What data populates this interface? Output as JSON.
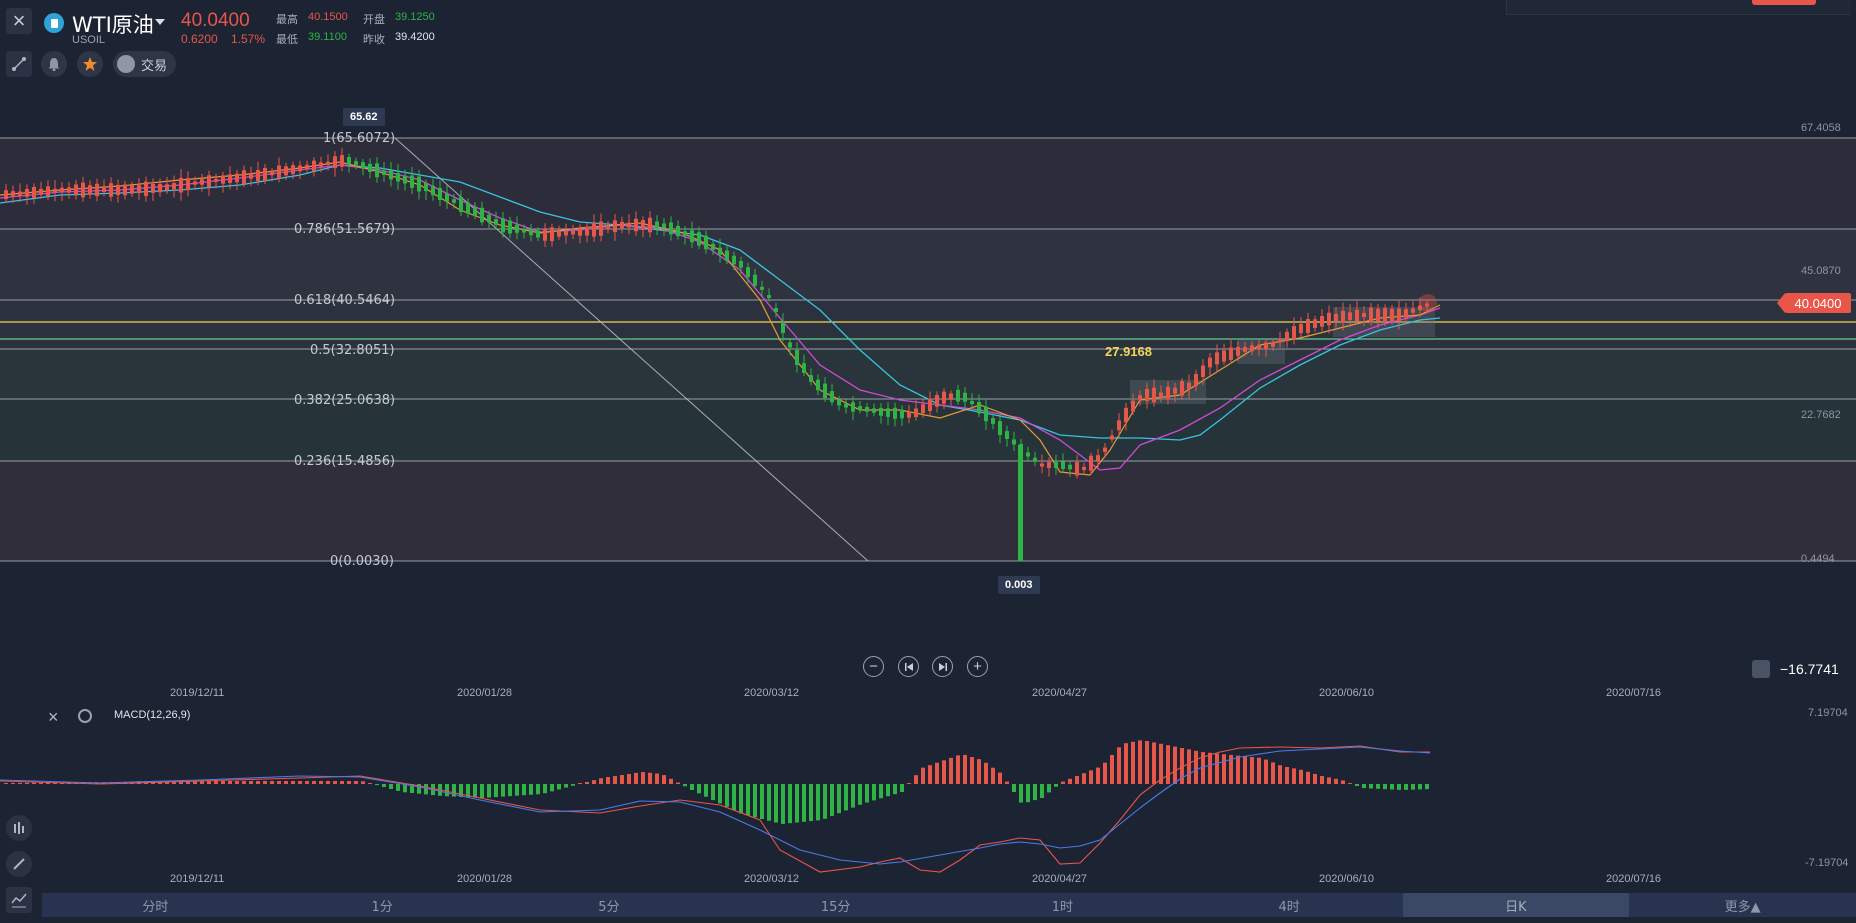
{
  "header": {
    "symbol_name": "WTI原油",
    "symbol_code": "USOIL",
    "last_price": "40.0400",
    "change": "0.6200",
    "change_pct": "1.57%",
    "high_label": "最高",
    "high_value": "40.1500",
    "open_label": "开盘",
    "open_value": "39.1250",
    "low_label": "最低",
    "low_value": "39.1100",
    "prev_close_label": "昨收",
    "prev_close_value": "39.4200"
  },
  "toolbar": {
    "trade_label": "交易",
    "icons": [
      "close-icon",
      "draw-tool-icon",
      "bell-icon",
      "star-icon",
      "trade-icon"
    ]
  },
  "chart_data": [
    {
      "type": "candlestick",
      "title": "WTI原油",
      "fib_levels": [
        {
          "label": "1(65.6072)",
          "value": 65.6072
        },
        {
          "label": "0.786(51.5679)",
          "value": 51.5679
        },
        {
          "label": "0.618(40.5464)",
          "value": 40.5464
        },
        {
          "label": "0.5(32.8051)",
          "value": 32.8051
        },
        {
          "label": "0.382(25.0638)",
          "value": 25.0638
        },
        {
          "label": "0.236(15.4856)",
          "value": 15.4856
        },
        {
          "label": "0(0.0030)",
          "value": 0.003
        }
      ],
      "right_axis": [
        "67.4058",
        "45.0870",
        "22.7682",
        "0.4494"
      ],
      "x_ticks": [
        "2019/12/11",
        "2020/01/28",
        "2020/03/12",
        "2020/04/27",
        "2020/06/10",
        "2020/07/16"
      ],
      "annotations": {
        "high": "65.62",
        "low": "0.003",
        "mid": "27.9168"
      },
      "last_price": "40.0400",
      "alarm_value": "−16.7741",
      "ylim": [
        0.4494,
        67.4058
      ]
    },
    {
      "type": "bar",
      "title": "MACD(12,26,9)",
      "right_axis": [
        "7.19704",
        "-7.19704"
      ],
      "x_ticks": [
        "2019/12/11",
        "2020/01/28",
        "2020/03/12",
        "2020/04/27",
        "2020/06/10",
        "2020/07/16"
      ],
      "ylim": [
        -7.19704,
        7.19704
      ]
    }
  ],
  "timeframes": [
    "分时",
    "1分",
    "5分",
    "15分",
    "1时",
    "4时",
    "日K",
    "更多▲"
  ],
  "active_timeframe": "日K",
  "colors": {
    "up": "#e8564a",
    "down": "#2fb344",
    "bg": "#1c2333"
  }
}
